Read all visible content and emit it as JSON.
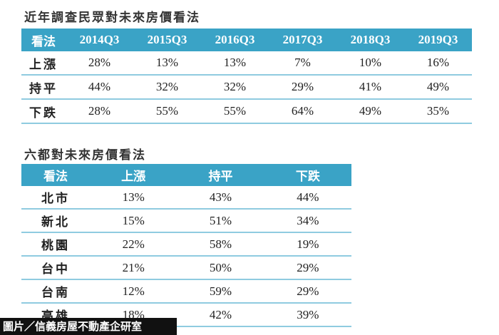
{
  "table1": {
    "title": "近年調查民眾對未來房價看法",
    "header": [
      "看法",
      "2014Q3",
      "2015Q3",
      "2016Q3",
      "2017Q3",
      "2018Q3",
      "2019Q3"
    ],
    "rows": [
      [
        "上漲",
        "28%",
        "13%",
        "13%",
        "7%",
        "10%",
        "16%"
      ],
      [
        "持平",
        "44%",
        "32%",
        "32%",
        "29%",
        "41%",
        "49%"
      ],
      [
        "下跌",
        "28%",
        "55%",
        "55%",
        "64%",
        "49%",
        "35%"
      ]
    ]
  },
  "table2": {
    "title": "六都對未來房價看法",
    "header": [
      "看法",
      "上漲",
      "持平",
      "下跌"
    ],
    "rows": [
      [
        "北市",
        "13%",
        "43%",
        "44%"
      ],
      [
        "新北",
        "15%",
        "51%",
        "34%"
      ],
      [
        "桃園",
        "22%",
        "58%",
        "19%"
      ],
      [
        "台中",
        "21%",
        "50%",
        "29%"
      ],
      [
        "台南",
        "12%",
        "59%",
        "29%"
      ],
      [
        "高雄",
        "18%",
        "42%",
        "39%"
      ]
    ]
  },
  "credit": "圖片／信義房屋不動產企研室"
}
